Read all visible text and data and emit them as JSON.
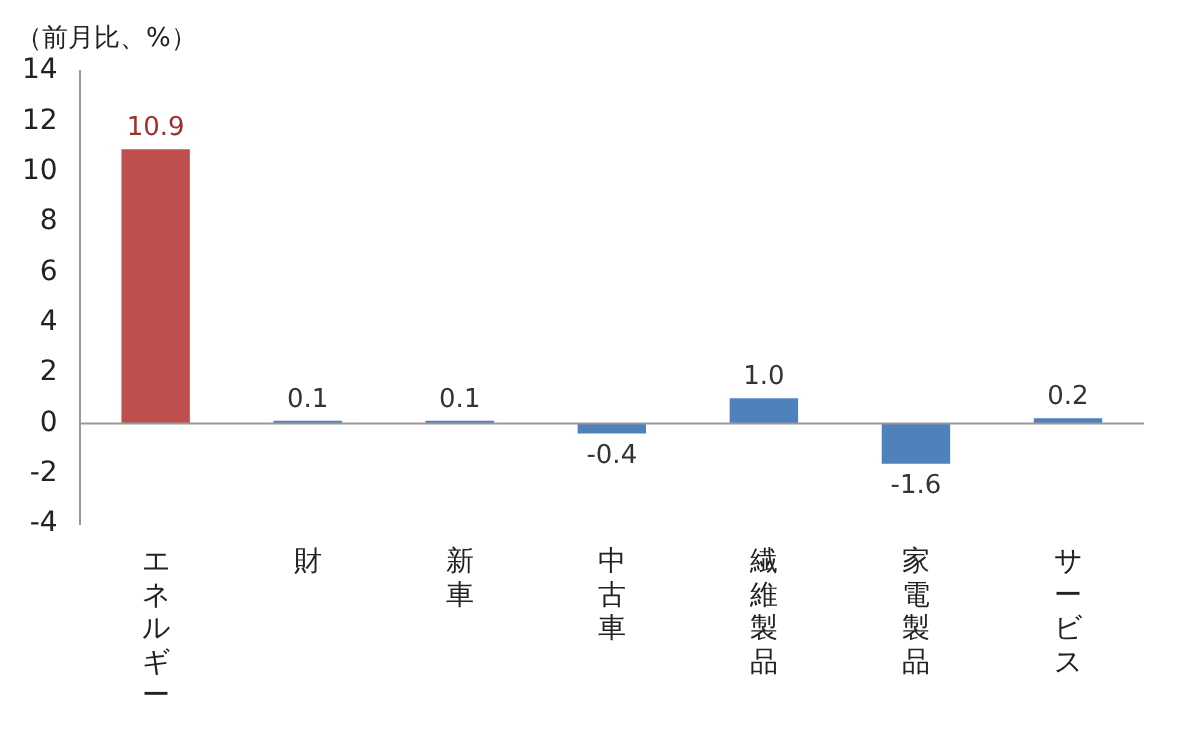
{
  "chart_data": {
    "type": "bar",
    "ylabel": "（前月比、%）",
    "categories": [
      "エネルギー",
      "財",
      "新車",
      "中古車",
      "繊維製品",
      "家電製品",
      "サービス"
    ],
    "values": [
      10.9,
      0.1,
      0.1,
      -0.4,
      1.0,
      -1.6,
      0.2
    ],
    "colors": [
      "#c0504d",
      "#4f81bd",
      "#4f81bd",
      "#4f81bd",
      "#4f81bd",
      "#4f81bd",
      "#4f81bd"
    ],
    "value_labels": [
      "10.9",
      "0.1",
      "0.1",
      "-0.4",
      "1.0",
      "-1.6",
      "0.2"
    ],
    "ylim": [
      -4,
      14
    ],
    "yticks": [
      -4,
      -2,
      0,
      2,
      4,
      6,
      8,
      10,
      12,
      14
    ],
    "ref_lines": [
      {
        "axis": "y",
        "value": 0,
        "color": "#999999"
      }
    ],
    "grid": false,
    "legend": false
  }
}
